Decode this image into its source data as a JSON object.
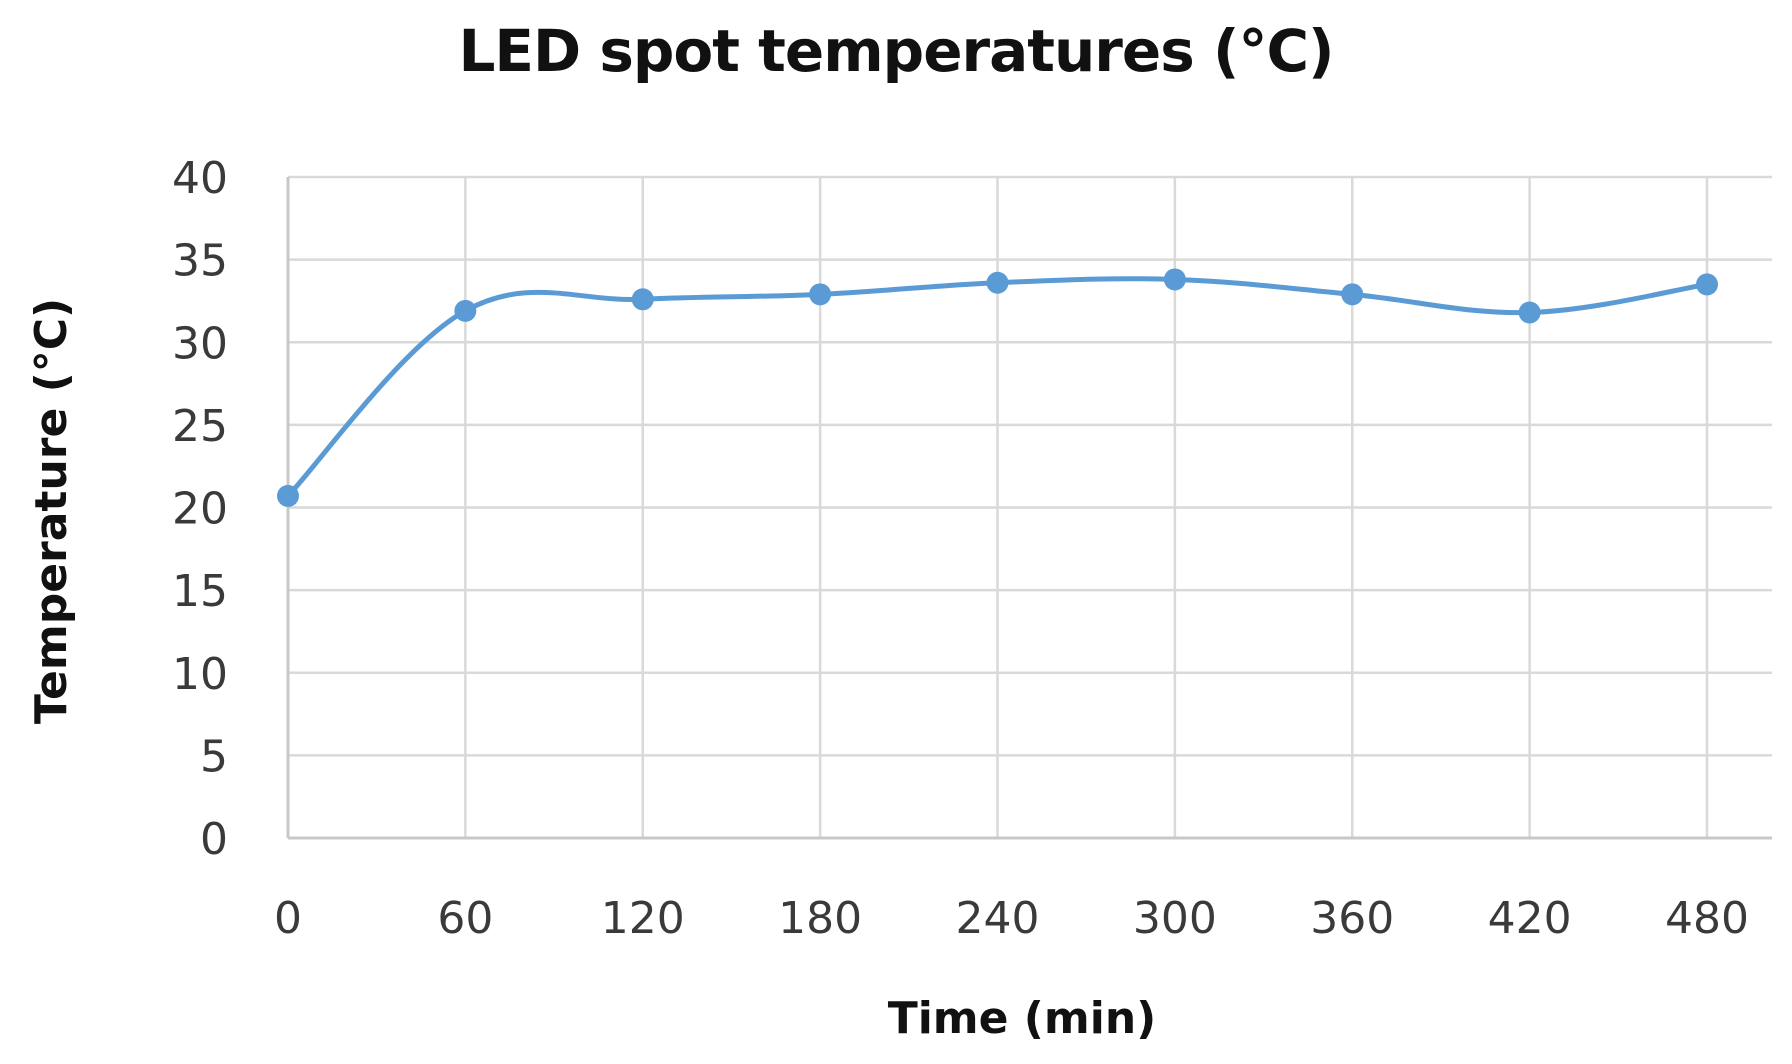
{
  "chart_data": {
    "type": "line",
    "title": "LED spot temperatures (°C)",
    "xlabel": "Time (min)",
    "ylabel": "Temperature (°C)",
    "categories": [
      "0",
      "60",
      "120",
      "180",
      "240",
      "300",
      "360",
      "420",
      "480"
    ],
    "x": [
      0,
      60,
      120,
      180,
      240,
      300,
      360,
      420,
      480
    ],
    "series": [
      {
        "name": "LED spot temperature",
        "values": [
          20.7,
          31.9,
          32.6,
          32.9,
          33.6,
          33.8,
          32.9,
          31.8,
          33.5
        ],
        "color": "#5b9bd5",
        "smooth": true,
        "markers": true
      }
    ],
    "ylim": [
      0,
      40
    ],
    "yticks": [
      0,
      5,
      10,
      15,
      20,
      25,
      30,
      35,
      40
    ],
    "xlim": [
      0,
      480
    ],
    "xticks": [
      0,
      60,
      120,
      180,
      240,
      300,
      360,
      420,
      480
    ],
    "grid": true,
    "legend": null
  },
  "colors": {
    "series": "#5b9bd5",
    "grid": "#d9d9d9",
    "text": "#3a3a3a",
    "title": "#111111"
  }
}
